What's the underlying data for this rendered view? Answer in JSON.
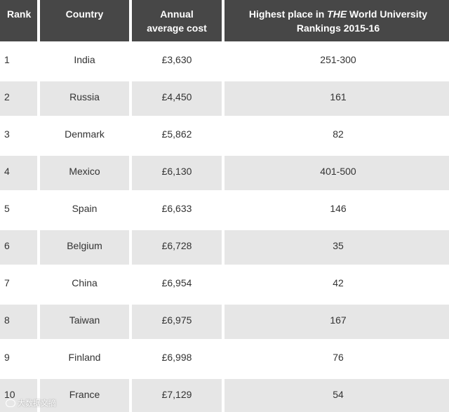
{
  "headers": {
    "rank": "Rank",
    "country": "Country",
    "cost_line1": "Annual",
    "cost_line2": "average cost",
    "place_prefix": "Highest place in ",
    "place_italic": "THE",
    "place_suffix": " World University",
    "place_line2": "Rankings 2015-16"
  },
  "rows": [
    {
      "rank": "1",
      "country": "India",
      "cost": "£3,630",
      "place": "251-300"
    },
    {
      "rank": "2",
      "country": "Russia",
      "cost": "£4,450",
      "place": "161"
    },
    {
      "rank": "3",
      "country": "Denmark",
      "cost": "£5,862",
      "place": "82"
    },
    {
      "rank": "4",
      "country": "Mexico",
      "cost": "£6,130",
      "place": "401-500"
    },
    {
      "rank": "5",
      "country": "Spain",
      "cost": "£6,633",
      "place": "146"
    },
    {
      "rank": "6",
      "country": "Belgium",
      "cost": "£6,728",
      "place": "35"
    },
    {
      "rank": "7",
      "country": "China",
      "cost": "£6,954",
      "place": "42"
    },
    {
      "rank": "8",
      "country": "Taiwan",
      "cost": "£6,975",
      "place": "167"
    },
    {
      "rank": "9",
      "country": "Finland",
      "cost": "£6,998",
      "place": "76"
    },
    {
      "rank": "10",
      "country": "France",
      "cost": "£7,129",
      "place": "54"
    }
  ],
  "watermark": {
    "text": "大数据文摘",
    "icon": "weibo-icon"
  }
}
